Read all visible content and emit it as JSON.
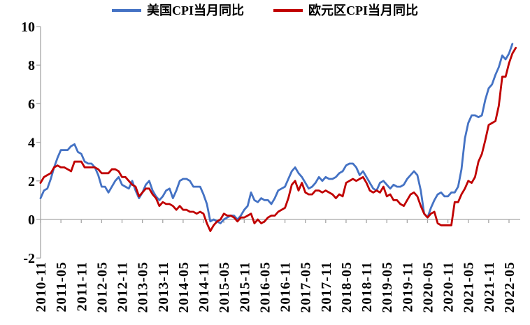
{
  "chart_data": {
    "type": "line",
    "title": "",
    "xlabel": "",
    "ylabel": "",
    "ylim": [
      -2,
      10
    ],
    "y_ticks": [
      10,
      8,
      6,
      4,
      2,
      0,
      -2
    ],
    "grid": false,
    "legend_position": "top",
    "axis_color": "#A6A6A6",
    "text_color": "#000000",
    "x_tick_every": 6,
    "x_tick_labels": [
      "2010-11",
      "2011-05",
      "2011-11",
      "2012-05",
      "2012-11",
      "2013-05",
      "2013-11",
      "2014-05",
      "2014-11",
      "2015-05",
      "2015-11",
      "2016-05",
      "2016-11",
      "2017-05",
      "2017-11",
      "2018-05",
      "2018-11",
      "2019-05",
      "2019-11",
      "2020-05",
      "2020-11",
      "2021-05",
      "2021-11",
      "2022-05"
    ],
    "x_monthly": [
      "2010-11",
      "2010-12",
      "2011-01",
      "2011-02",
      "2011-03",
      "2011-04",
      "2011-05",
      "2011-06",
      "2011-07",
      "2011-08",
      "2011-09",
      "2011-10",
      "2011-11",
      "2011-12",
      "2012-01",
      "2012-02",
      "2012-03",
      "2012-04",
      "2012-05",
      "2012-06",
      "2012-07",
      "2012-08",
      "2012-09",
      "2012-10",
      "2012-11",
      "2012-12",
      "2013-01",
      "2013-02",
      "2013-03",
      "2013-04",
      "2013-05",
      "2013-06",
      "2013-07",
      "2013-08",
      "2013-09",
      "2013-10",
      "2013-11",
      "2013-12",
      "2014-01",
      "2014-02",
      "2014-03",
      "2014-04",
      "2014-05",
      "2014-06",
      "2014-07",
      "2014-08",
      "2014-09",
      "2014-10",
      "2014-11",
      "2014-12",
      "2015-01",
      "2015-02",
      "2015-03",
      "2015-04",
      "2015-05",
      "2015-06",
      "2015-07",
      "2015-08",
      "2015-09",
      "2015-10",
      "2015-11",
      "2015-12",
      "2016-01",
      "2016-02",
      "2016-03",
      "2016-04",
      "2016-05",
      "2016-06",
      "2016-07",
      "2016-08",
      "2016-09",
      "2016-10",
      "2016-11",
      "2016-12",
      "2017-01",
      "2017-02",
      "2017-03",
      "2017-04",
      "2017-05",
      "2017-06",
      "2017-07",
      "2017-08",
      "2017-09",
      "2017-10",
      "2017-11",
      "2017-12",
      "2018-01",
      "2018-02",
      "2018-03",
      "2018-04",
      "2018-05",
      "2018-06",
      "2018-07",
      "2018-08",
      "2018-09",
      "2018-10",
      "2018-11",
      "2018-12",
      "2019-01",
      "2019-02",
      "2019-03",
      "2019-04",
      "2019-05",
      "2019-06",
      "2019-07",
      "2019-08",
      "2019-09",
      "2019-10",
      "2019-11",
      "2019-12",
      "2020-01",
      "2020-02",
      "2020-03",
      "2020-04",
      "2020-05",
      "2020-06",
      "2020-07",
      "2020-08",
      "2020-09",
      "2020-10",
      "2020-11",
      "2020-12",
      "2021-01",
      "2021-02",
      "2021-03",
      "2021-04",
      "2021-05",
      "2021-06",
      "2021-07",
      "2021-08",
      "2021-09",
      "2021-10",
      "2021-11",
      "2021-12",
      "2022-01",
      "2022-02",
      "2022-03",
      "2022-04",
      "2022-05",
      "2022-06",
      "2022-07"
    ],
    "series": [
      {
        "name": "美国CPI当月同比",
        "color": "#4472C4",
        "values": [
          1.1,
          1.5,
          1.6,
          2.1,
          2.7,
          3.2,
          3.6,
          3.6,
          3.6,
          3.8,
          3.9,
          3.5,
          3.4,
          3.0,
          2.9,
          2.9,
          2.7,
          2.3,
          1.7,
          1.7,
          1.4,
          1.7,
          2.0,
          2.2,
          1.8,
          1.7,
          1.6,
          2.0,
          1.5,
          1.1,
          1.4,
          1.8,
          2.0,
          1.5,
          1.2,
          1.0,
          1.2,
          1.5,
          1.6,
          1.1,
          1.5,
          2.0,
          2.1,
          2.1,
          2.0,
          1.7,
          1.7,
          1.7,
          1.3,
          0.8,
          -0.1,
          0.0,
          -0.1,
          -0.2,
          0.0,
          0.1,
          0.2,
          0.2,
          0.0,
          0.2,
          0.5,
          0.7,
          1.4,
          1.0,
          0.9,
          1.1,
          1.0,
          1.0,
          0.8,
          1.1,
          1.5,
          1.6,
          1.7,
          2.1,
          2.5,
          2.7,
          2.4,
          2.2,
          1.9,
          1.6,
          1.7,
          1.9,
          2.2,
          2.0,
          2.2,
          2.1,
          2.1,
          2.2,
          2.4,
          2.5,
          2.8,
          2.9,
          2.9,
          2.7,
          2.3,
          2.5,
          2.2,
          1.9,
          1.6,
          1.5,
          1.9,
          2.0,
          1.8,
          1.6,
          1.8,
          1.7,
          1.7,
          1.8,
          2.1,
          2.3,
          2.5,
          2.3,
          1.5,
          0.3,
          0.1,
          0.6,
          1.0,
          1.3,
          1.4,
          1.2,
          1.2,
          1.4,
          1.4,
          1.7,
          2.6,
          4.2,
          5.0,
          5.4,
          5.4,
          5.3,
          5.4,
          6.2,
          6.8,
          7.0,
          7.5,
          7.9,
          8.5,
          8.3,
          8.6,
          9.1
        ]
      },
      {
        "name": "欧元区CPI当月同比",
        "color": "#C00000",
        "values": [
          1.9,
          2.2,
          2.3,
          2.4,
          2.7,
          2.8,
          2.7,
          2.7,
          2.6,
          2.5,
          3.0,
          3.0,
          3.0,
          2.7,
          2.7,
          2.7,
          2.7,
          2.6,
          2.4,
          2.4,
          2.4,
          2.6,
          2.6,
          2.5,
          2.2,
          2.2,
          2.0,
          1.8,
          1.7,
          1.2,
          1.4,
          1.6,
          1.6,
          1.3,
          1.1,
          0.7,
          0.9,
          0.8,
          0.8,
          0.7,
          0.5,
          0.7,
          0.5,
          0.5,
          0.4,
          0.4,
          0.3,
          0.4,
          0.3,
          -0.2,
          -0.6,
          -0.3,
          -0.1,
          0.0,
          0.3,
          0.2,
          0.2,
          0.1,
          -0.1,
          0.1,
          0.1,
          0.2,
          0.3,
          -0.2,
          0.0,
          -0.2,
          -0.1,
          0.1,
          0.2,
          0.2,
          0.4,
          0.5,
          0.6,
          1.1,
          1.8,
          2.0,
          1.5,
          1.9,
          1.4,
          1.3,
          1.3,
          1.5,
          1.5,
          1.4,
          1.5,
          1.4,
          1.3,
          1.1,
          1.3,
          1.2,
          1.9,
          2.0,
          2.1,
          2.0,
          2.1,
          2.2,
          1.9,
          1.5,
          1.4,
          1.5,
          1.4,
          1.7,
          1.2,
          1.3,
          1.0,
          1.0,
          0.8,
          0.7,
          1.0,
          1.3,
          1.4,
          1.2,
          0.7,
          0.3,
          0.1,
          0.3,
          0.4,
          -0.2,
          -0.3,
          -0.3,
          -0.3,
          -0.3,
          0.9,
          0.9,
          1.3,
          1.6,
          2.0,
          1.9,
          2.2,
          3.0,
          3.4,
          4.1,
          4.9,
          5.0,
          5.1,
          5.9,
          7.4,
          7.4,
          8.1,
          8.6,
          8.9
        ]
      }
    ]
  }
}
